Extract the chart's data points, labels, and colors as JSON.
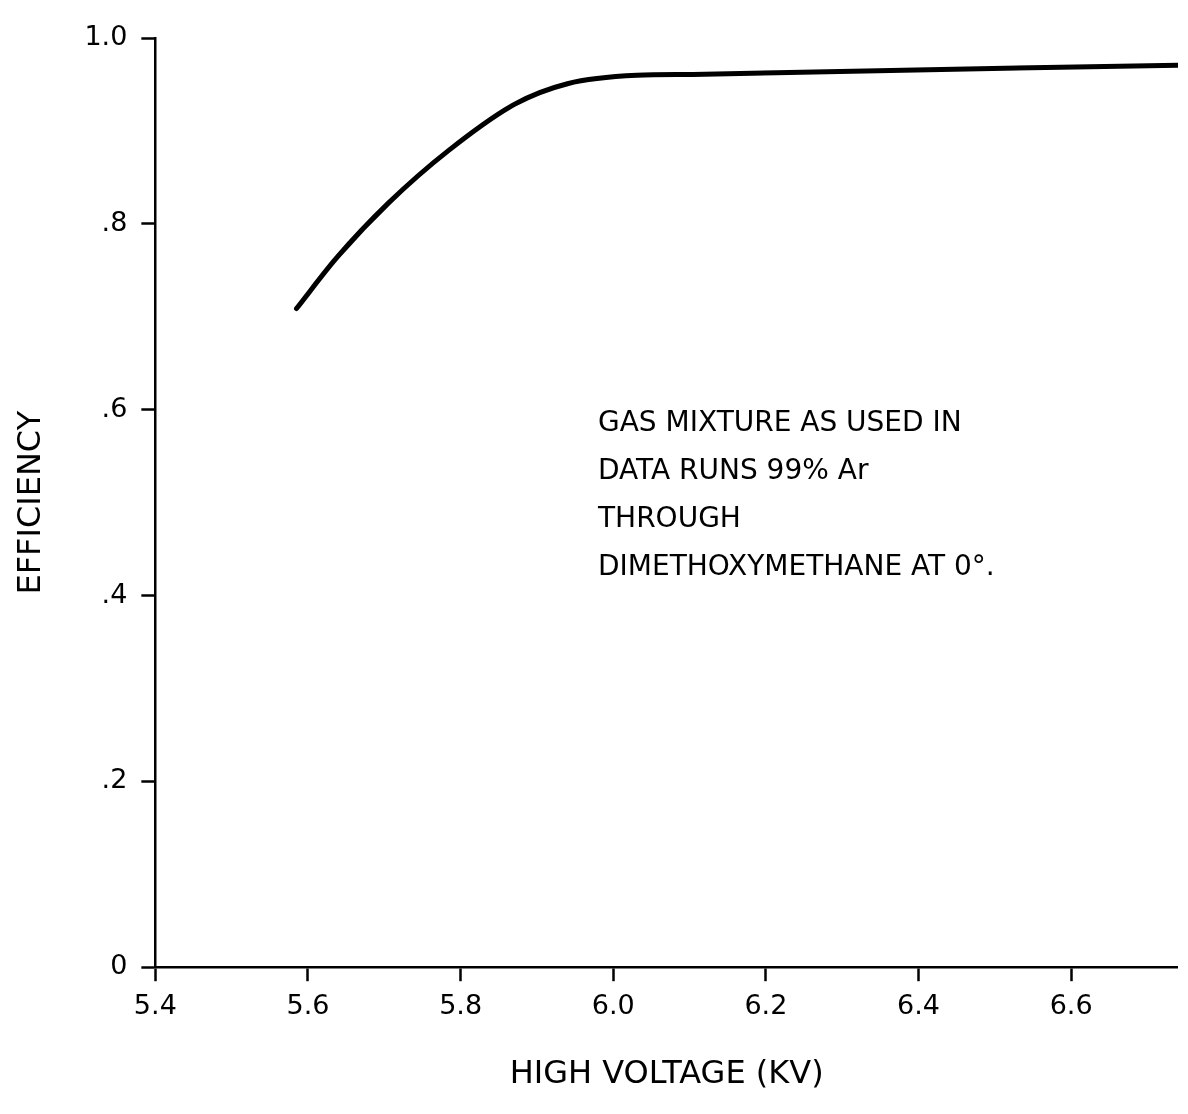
{
  "chart_data": {
    "type": "line",
    "xlabel": "HIGH VOLTAGE (KV)",
    "ylabel": "EFFICIENCY",
    "annotations": [
      "GAS MIXTURE AS USED IN DATA RUNS 99% Ar THROUGH DIMETHOXYMETHANE AT 0°."
    ],
    "x": [
      5.585,
      5.638,
      5.706,
      5.784,
      5.871,
      5.94,
      6.031,
      6.104,
      6.28,
      6.74
    ],
    "series": [
      {
        "color": "#000000",
        "values": [
          0.709,
          0.764,
          0.823,
          0.879,
          0.929,
          0.951,
          0.96,
          0.961,
          0.964,
          0.971
        ]
      }
    ],
    "xlim": [
      5.4,
      6.74
    ],
    "ylim": [
      0,
      1
    ],
    "xticks": [
      5.4,
      5.6,
      5.8,
      {
        "value": 6,
        "label": "6.0"
      },
      6.2,
      6.4,
      6.6
    ],
    "yticks": [
      {
        "value": 0,
        "label": "0"
      },
      {
        "value": 0.2,
        "label": ".2"
      },
      {
        "value": 0.4,
        "label": ".4"
      },
      {
        "value": 0.6,
        "label": ".6"
      },
      {
        "value": 0.8,
        "label": ".8"
      },
      {
        "value": 1,
        "label": "1.0"
      }
    ],
    "grid": false,
    "legend": false,
    "marker": "none",
    "line_style": "solid"
  }
}
